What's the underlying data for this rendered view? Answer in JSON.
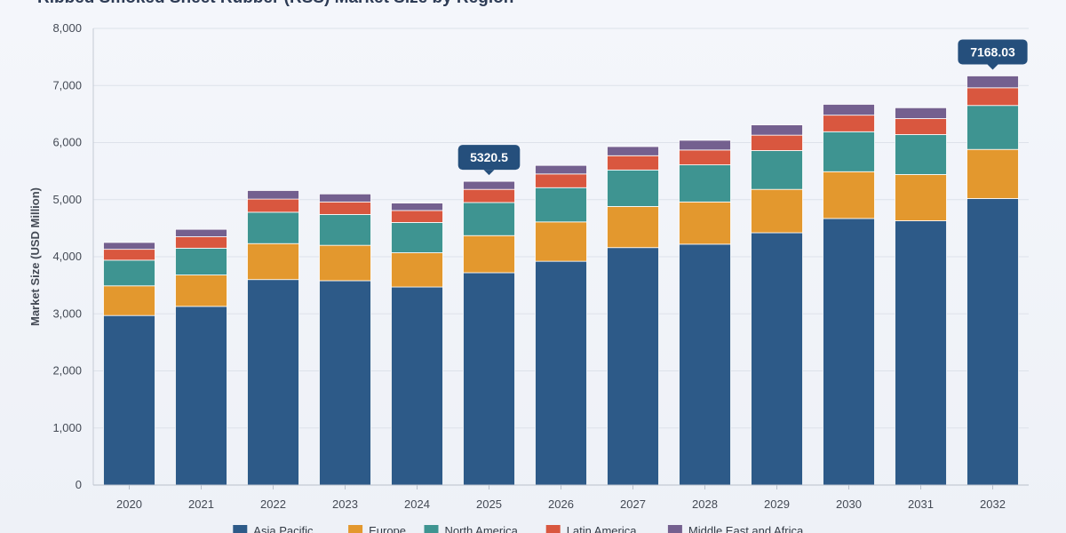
{
  "chart_data": {
    "type": "bar",
    "stacked": true,
    "title": "Ribbed Smoked Sheet Rubber (RSS) Market Size by Region",
    "xlabel": "",
    "ylabel": "Market Size (USD Million)",
    "ylim": [
      0,
      8000
    ],
    "yticks": [
      0,
      1000,
      2000,
      3000,
      4000,
      5000,
      6000,
      7000,
      8000
    ],
    "ytick_labels": [
      "0",
      "1,000",
      "2,000",
      "3,000",
      "4,000",
      "5,000",
      "6,000",
      "7,000",
      "8,000"
    ],
    "grid": true,
    "legend_position": "bottom",
    "categories": [
      "2020",
      "2021",
      "2022",
      "2023",
      "2024",
      "2025",
      "2026",
      "2027",
      "2028",
      "2029",
      "2030",
      "2031",
      "2032"
    ],
    "series": [
      {
        "name": "Asia Pacific",
        "color": "#2d5a88",
        "values": [
          2970,
          3130,
          3600,
          3580,
          3470,
          3720,
          3920,
          4160,
          4220,
          4420,
          4670,
          4630,
          5020
        ]
      },
      {
        "name": "Europe",
        "color": "#e3982e",
        "values": [
          520,
          550,
          630,
          620,
          600,
          650,
          690,
          720,
          740,
          760,
          820,
          810,
          860
        ]
      },
      {
        "name": "North America",
        "color": "#3e9491",
        "values": [
          450,
          470,
          550,
          540,
          530,
          580,
          600,
          640,
          650,
          680,
          700,
          700,
          770
        ]
      },
      {
        "name": "Latin America",
        "color": "#d9573f",
        "values": [
          190,
          200,
          230,
          220,
          210,
          230,
          240,
          250,
          260,
          270,
          290,
          280,
          310
        ]
      },
      {
        "name": "Middle East and Africa",
        "color": "#74608f",
        "values": [
          120,
          130,
          150,
          140,
          130,
          141,
          150,
          160,
          170,
          180,
          190,
          190,
          208
        ]
      }
    ],
    "annotations": [
      {
        "category": "2025",
        "text": "5320.5"
      },
      {
        "category": "2032",
        "text": "7168.03"
      }
    ]
  }
}
